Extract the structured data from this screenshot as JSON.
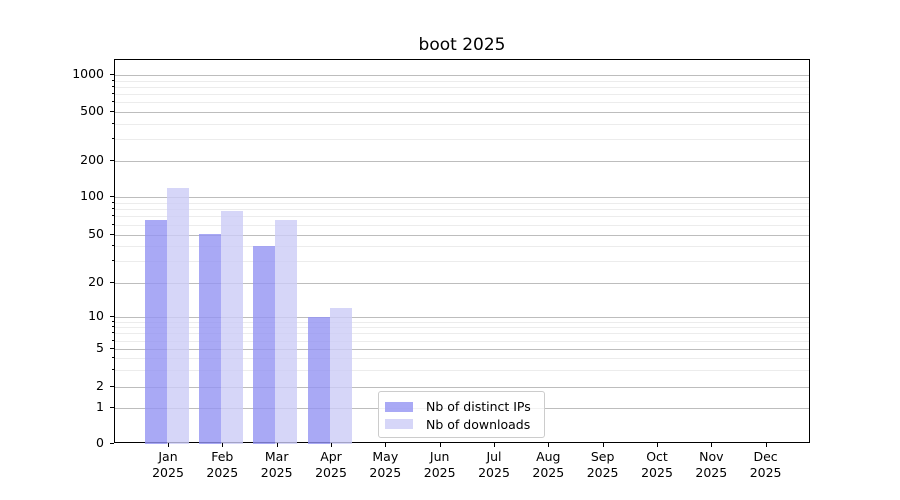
{
  "chart_data": {
    "type": "bar",
    "title": "boot 2025",
    "categories": [
      "Jan 2025",
      "Feb 2025",
      "Mar 2025",
      "Apr 2025",
      "May 2025",
      "Jun 2025",
      "Jul 2025",
      "Aug 2025",
      "Sep 2025",
      "Oct 2025",
      "Nov 2025",
      "Dec 2025"
    ],
    "series": [
      {
        "name": "Nb of distinct IPs",
        "color": "#9494f2",
        "values": [
          66,
          51,
          40,
          10,
          null,
          null,
          null,
          null,
          null,
          null,
          null,
          null
        ]
      },
      {
        "name": "Nb of downloads",
        "color": "#ccccf6",
        "values": [
          120,
          78,
          66,
          12,
          null,
          null,
          null,
          null,
          null,
          null,
          null,
          null
        ]
      }
    ],
    "y_ticks": [
      0,
      1,
      2,
      5,
      10,
      20,
      50,
      100,
      200,
      500,
      1000
    ],
    "y_minor_ticks": [
      3,
      4,
      6,
      7,
      8,
      9,
      30,
      40,
      60,
      70,
      80,
      90,
      300,
      400,
      600,
      700,
      800,
      900
    ],
    "y_scale": "log-like with linear 0-1 segment",
    "ylim": [
      0,
      1300
    ],
    "xlabel": "",
    "ylabel": "",
    "grid": "horizontal major + minor",
    "legend_position": "inside bottom center-right"
  },
  "colors": {
    "major_grid": "#bdbdbd",
    "minor_grid": "#ececec",
    "axis": "#000000",
    "text": "#000000",
    "background": "#ffffff"
  }
}
